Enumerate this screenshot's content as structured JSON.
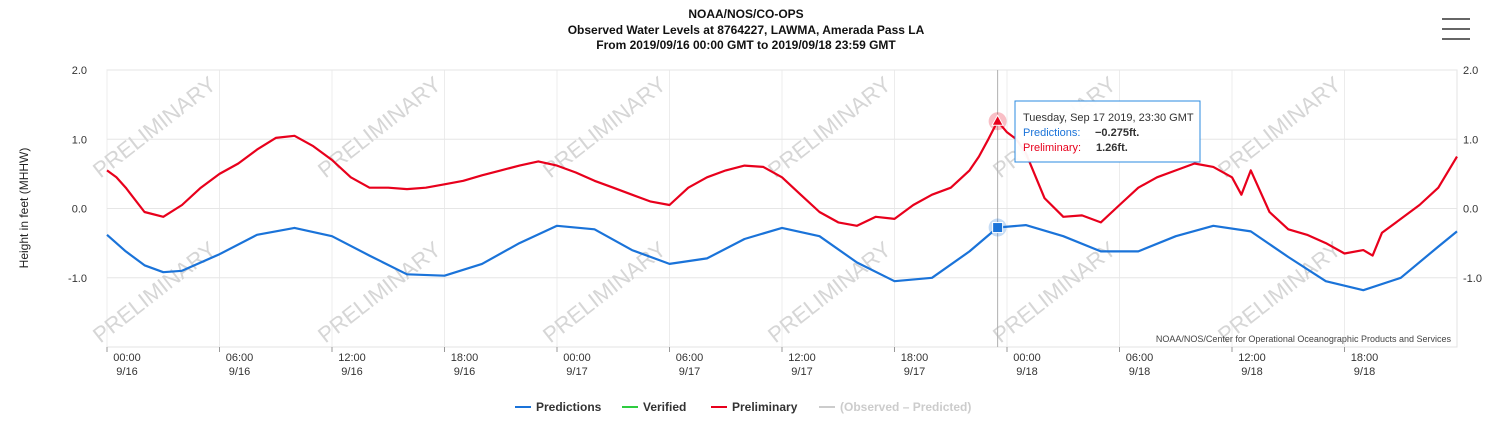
{
  "header": {
    "line1": "NOAA/NOS/CO-OPS",
    "line2": "Observed Water Levels at 8764227, LAWMA, Amerada Pass LA",
    "line3": "From 2019/09/16 00:00 GMT to 2019/09/18 23:59 GMT"
  },
  "credit": "NOAA/NOS/Center for Operational Oceanographic Products and Services",
  "watermark": "PRELIMINARY",
  "tooltip": {
    "date": "Tuesday, Sep 17 2019, 23:30 GMT",
    "pred_label": "Predictions:",
    "pred_value": "−0.275ft.",
    "prelim_label": "Preliminary:",
    "prelim_value": "1.26ft."
  },
  "legend": [
    {
      "name": "Predictions",
      "color": "#1a73d9",
      "disabled": false
    },
    {
      "name": "Verified",
      "color": "#2ecc40",
      "disabled": false
    },
    {
      "name": "Preliminary",
      "color": "#e8001c",
      "disabled": false
    },
    {
      "name": "(Observed – Predicted)",
      "color": "#cccccc",
      "disabled": true
    }
  ],
  "chart_data": {
    "type": "line",
    "ylabel": "Height in feet (MHHW)",
    "ylim": [
      -2.0,
      2.0
    ],
    "xlim_hours": [
      0,
      72
    ],
    "y_ticks": [
      {
        "v": 2.0,
        "label": "2.0"
      },
      {
        "v": 1.0,
        "label": "1.0"
      },
      {
        "v": 0.0,
        "label": "0.0"
      },
      {
        "v": -1.0,
        "label": "-1.0"
      }
    ],
    "x_ticks": [
      {
        "h": 0,
        "time": "00:00",
        "date": "9/16"
      },
      {
        "h": 6,
        "time": "06:00",
        "date": "9/16"
      },
      {
        "h": 12,
        "time": "12:00",
        "date": "9/16"
      },
      {
        "h": 18,
        "time": "18:00",
        "date": "9/16"
      },
      {
        "h": 24,
        "time": "00:00",
        "date": "9/17"
      },
      {
        "h": 30,
        "time": "06:00",
        "date": "9/17"
      },
      {
        "h": 36,
        "time": "12:00",
        "date": "9/17"
      },
      {
        "h": 42,
        "time": "18:00",
        "date": "9/17"
      },
      {
        "h": 48,
        "time": "00:00",
        "date": "9/18"
      },
      {
        "h": 54,
        "time": "06:00",
        "date": "9/18"
      },
      {
        "h": 60,
        "time": "12:00",
        "date": "9/18"
      },
      {
        "h": 66,
        "time": "18:00",
        "date": "9/18"
      }
    ],
    "hover_hour": 47.5,
    "series": [
      {
        "name": "Predictions",
        "color": "#1a73d9",
        "x": [
          0,
          1,
          2,
          3,
          4,
          6,
          8,
          10,
          12,
          14,
          16,
          18,
          20,
          22,
          24,
          26,
          28,
          30,
          32,
          34,
          36,
          38,
          40,
          42,
          44,
          46,
          47.5,
          49,
          51,
          53,
          55,
          57,
          59,
          61,
          63,
          65,
          67,
          69,
          71,
          72
        ],
        "y": [
          -0.38,
          -0.62,
          -0.82,
          -0.92,
          -0.9,
          -0.66,
          -0.38,
          -0.28,
          -0.4,
          -0.68,
          -0.95,
          -0.97,
          -0.8,
          -0.5,
          -0.25,
          -0.3,
          -0.6,
          -0.8,
          -0.72,
          -0.44,
          -0.28,
          -0.4,
          -0.78,
          -1.05,
          -1.0,
          -0.62,
          -0.275,
          -0.24,
          -0.4,
          -0.62,
          -0.62,
          -0.4,
          -0.25,
          -0.33,
          -0.7,
          -1.05,
          -1.18,
          -1.0,
          -0.55,
          -0.33
        ]
      },
      {
        "name": "Preliminary",
        "color": "#e8001c",
        "x": [
          0,
          0.5,
          1,
          2,
          3,
          4,
          5,
          6,
          7,
          8,
          9,
          10,
          11,
          12,
          13,
          14,
          15,
          16,
          17,
          18,
          19,
          20,
          21,
          22,
          23,
          24,
          25,
          26,
          27,
          28,
          29,
          30,
          31,
          32,
          33,
          34,
          35,
          36,
          37,
          38,
          39,
          40,
          41,
          42,
          43,
          44,
          45,
          46,
          46.5,
          47,
          47.5,
          48,
          48.5,
          49,
          50,
          51,
          52,
          53,
          54,
          55,
          56,
          57,
          58,
          59,
          60,
          60.5,
          61,
          62,
          63,
          64,
          65,
          66,
          67,
          67.5,
          68,
          69,
          70,
          71,
          72
        ],
        "y": [
          0.55,
          0.45,
          0.3,
          -0.05,
          -0.12,
          0.05,
          0.3,
          0.5,
          0.65,
          0.85,
          1.02,
          1.05,
          0.9,
          0.7,
          0.45,
          0.3,
          0.3,
          0.28,
          0.3,
          0.35,
          0.4,
          0.48,
          0.55,
          0.62,
          0.68,
          0.62,
          0.52,
          0.4,
          0.3,
          0.2,
          0.1,
          0.05,
          0.3,
          0.45,
          0.55,
          0.62,
          0.6,
          0.45,
          0.2,
          -0.05,
          -0.2,
          -0.25,
          -0.12,
          -0.15,
          0.05,
          0.2,
          0.3,
          0.55,
          0.75,
          1.0,
          1.26,
          1.1,
          1.0,
          0.8,
          0.15,
          -0.12,
          -0.1,
          -0.2,
          0.05,
          0.3,
          0.45,
          0.55,
          0.65,
          0.6,
          0.45,
          0.2,
          0.55,
          -0.05,
          -0.3,
          -0.38,
          -0.5,
          -0.65,
          -0.6,
          -0.68,
          -0.35,
          -0.15,
          0.05,
          0.3,
          0.75
        ]
      }
    ]
  }
}
